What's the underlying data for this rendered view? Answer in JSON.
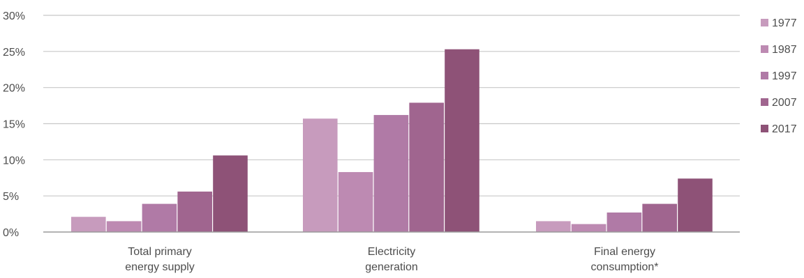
{
  "chart_data": {
    "type": "bar",
    "title": "",
    "xlabel": "",
    "ylabel": "",
    "ylim": [
      0,
      30
    ],
    "yticks": [
      0,
      5,
      10,
      15,
      20,
      25,
      30
    ],
    "ytick_labels": [
      "0%",
      "5%",
      "10%",
      "15%",
      "20%",
      "25%",
      "30%"
    ],
    "grid": true,
    "legend_position": "right",
    "categories": [
      [
        "Total primary",
        "energy supply"
      ],
      [
        "Electricity",
        "generation"
      ],
      [
        "Final energy",
        "consumption*"
      ]
    ],
    "series": [
      {
        "name": "1977",
        "color": "#c79bbd",
        "values": [
          2.1,
          15.7,
          1.5
        ]
      },
      {
        "name": "1987",
        "color": "#bd8ab2",
        "values": [
          1.5,
          8.3,
          1.1
        ]
      },
      {
        "name": "1997",
        "color": "#b07aa6",
        "values": [
          3.9,
          16.2,
          2.7
        ]
      },
      {
        "name": "2007",
        "color": "#a0658f",
        "values": [
          5.6,
          17.9,
          3.9
        ]
      },
      {
        "name": "2017",
        "color": "#8e5277",
        "values": [
          10.6,
          25.3,
          7.4
        ]
      }
    ]
  }
}
